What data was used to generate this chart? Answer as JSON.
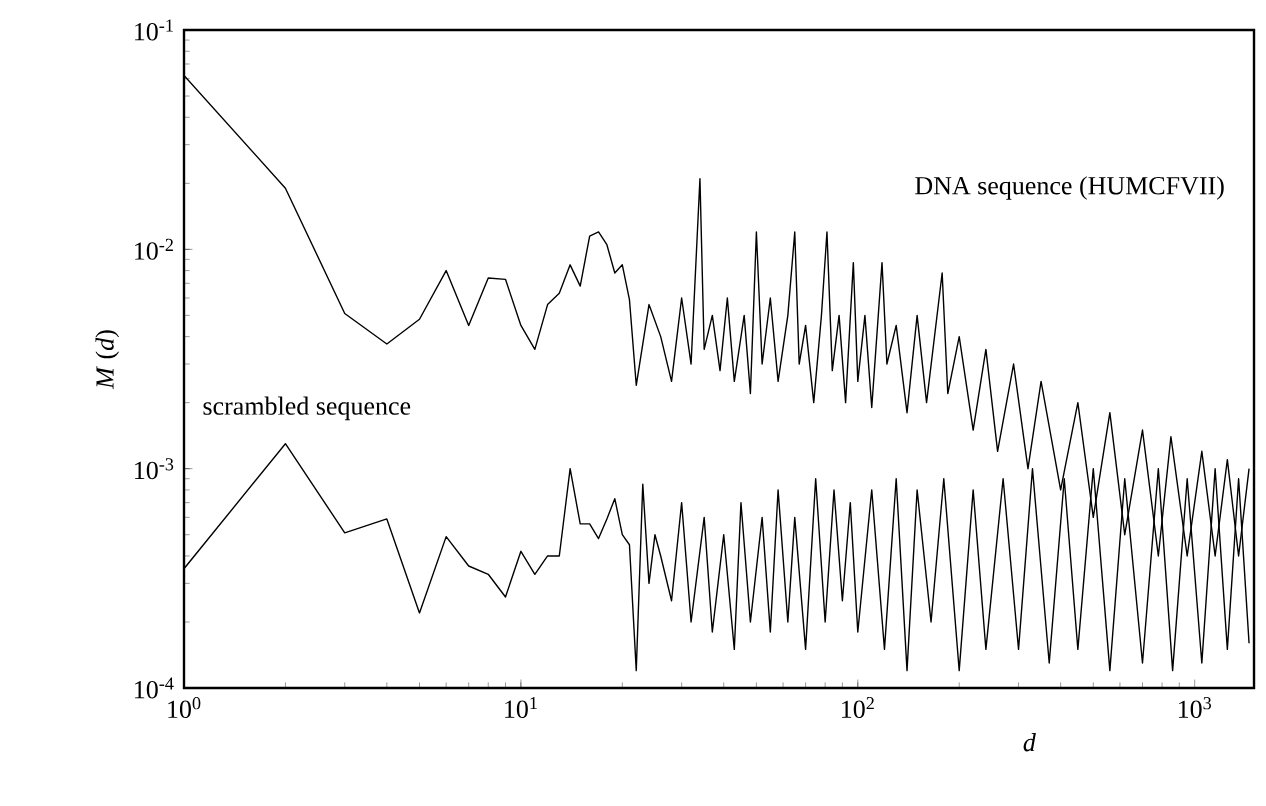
{
  "chart_data": {
    "type": "line",
    "xlabel": "d",
    "ylabel": "*M* (*d*)",
    "log": "xy",
    "xlim": [
      1,
      1500
    ],
    "ylim": [
      0.0001,
      0.1
    ],
    "xticks": [
      {
        "value": 1,
        "label": "10$^{0}$"
      },
      {
        "value": 10,
        "label": "10$^{1}$"
      },
      {
        "value": 100,
        "label": "10$^{2}$"
      },
      {
        "value": 1000,
        "label": "10$^{3}$"
      }
    ],
    "yticks": [
      {
        "value": 0.0001,
        "label": "10$^{-4}$"
      },
      {
        "value": 0.001,
        "label": "10$^{-3}$"
      },
      {
        "value": 0.01,
        "label": "10$^{-2}$"
      },
      {
        "value": 0.1,
        "label": "10$^{-1}$"
      }
    ],
    "grid": false,
    "marker": "none",
    "line_style": "solid",
    "series": [
      {
        "name": "DNA sequence (HUMCFVII)",
        "color": "#000000",
        "x": [
          1,
          2,
          3,
          4,
          5,
          6,
          7,
          8,
          9,
          10,
          11,
          12,
          13,
          14,
          15,
          16,
          17,
          18,
          19,
          20,
          21,
          22,
          23,
          24,
          26,
          28,
          30,
          32,
          34,
          35,
          37,
          39,
          41,
          43,
          46,
          48,
          50,
          52,
          55,
          58,
          62,
          65,
          67,
          70,
          74,
          78,
          81,
          84,
          88,
          92,
          97,
          100,
          105,
          110,
          118,
          122,
          130,
          140,
          150,
          160,
          178,
          185,
          200,
          220,
          240,
          260,
          290,
          320,
          350,
          400,
          450,
          500,
          560,
          620,
          700,
          780,
          850,
          950,
          1050,
          1150,
          1250,
          1350,
          1450
        ],
        "values": [
          0.062,
          0.019,
          0.0051,
          0.0037,
          0.0048,
          0.008,
          0.0045,
          0.0074,
          0.0073,
          0.0045,
          0.0035,
          0.0056,
          0.0063,
          0.0085,
          0.0068,
          0.0115,
          0.012,
          0.0105,
          0.0078,
          0.0085,
          0.0059,
          0.0024,
          0.0037,
          0.0056,
          0.004,
          0.0025,
          0.006,
          0.003,
          0.021,
          0.0035,
          0.005,
          0.0028,
          0.006,
          0.0025,
          0.005,
          0.0022,
          0.012,
          0.003,
          0.006,
          0.0025,
          0.005,
          0.012,
          0.003,
          0.0045,
          0.002,
          0.005,
          0.012,
          0.0028,
          0.005,
          0.002,
          0.0087,
          0.0025,
          0.005,
          0.0019,
          0.0087,
          0.003,
          0.0045,
          0.0018,
          0.005,
          0.002,
          0.0078,
          0.0022,
          0.004,
          0.0015,
          0.0035,
          0.0012,
          0.003,
          0.001,
          0.0025,
          0.0008,
          0.002,
          0.0006,
          0.0018,
          0.0005,
          0.0015,
          0.0004,
          0.0014,
          0.0004,
          0.0012,
          0.0004,
          0.0011,
          0.0004,
          0.001
        ]
      },
      {
        "name": "scrambled sequence",
        "color": "#000000",
        "x": [
          1,
          2,
          3,
          4,
          5,
          6,
          7,
          8,
          9,
          10,
          11,
          12,
          13,
          14,
          15,
          16,
          17,
          18,
          19,
          20,
          21,
          22,
          23,
          24,
          25,
          26,
          28,
          30,
          32,
          35,
          37,
          40,
          43,
          45,
          48,
          52,
          55,
          58,
          62,
          65,
          70,
          75,
          80,
          85,
          90,
          95,
          100,
          110,
          120,
          130,
          140,
          150,
          165,
          180,
          200,
          220,
          240,
          270,
          300,
          330,
          370,
          410,
          450,
          500,
          560,
          620,
          700,
          780,
          860,
          950,
          1050,
          1150,
          1250,
          1350,
          1450
        ],
        "values": [
          0.00035,
          0.0013,
          0.00051,
          0.00059,
          0.00022,
          0.00049,
          0.00036,
          0.00033,
          0.00026,
          0.00042,
          0.00033,
          0.0004,
          0.0004,
          0.001,
          0.00056,
          0.00056,
          0.00048,
          0.00059,
          0.00073,
          0.0005,
          0.00045,
          0.00012,
          0.00085,
          0.0003,
          0.0005,
          0.0004,
          0.00025,
          0.0007,
          0.0002,
          0.0006,
          0.00018,
          0.0005,
          0.00015,
          0.0007,
          0.0002,
          0.0006,
          0.00018,
          0.0008,
          0.0002,
          0.0006,
          0.00015,
          0.0009,
          0.0002,
          0.0008,
          0.00025,
          0.0007,
          0.00018,
          0.0008,
          0.00015,
          0.0009,
          0.00012,
          0.0008,
          0.0002,
          0.0009,
          0.00012,
          0.0008,
          0.00015,
          0.0009,
          0.00015,
          0.001,
          0.00013,
          0.0009,
          0.00015,
          0.001,
          0.00012,
          0.0009,
          0.00013,
          0.001,
          0.00012,
          0.0009,
          0.00013,
          0.001,
          0.00015,
          0.0009,
          0.00016
        ]
      }
    ]
  }
}
